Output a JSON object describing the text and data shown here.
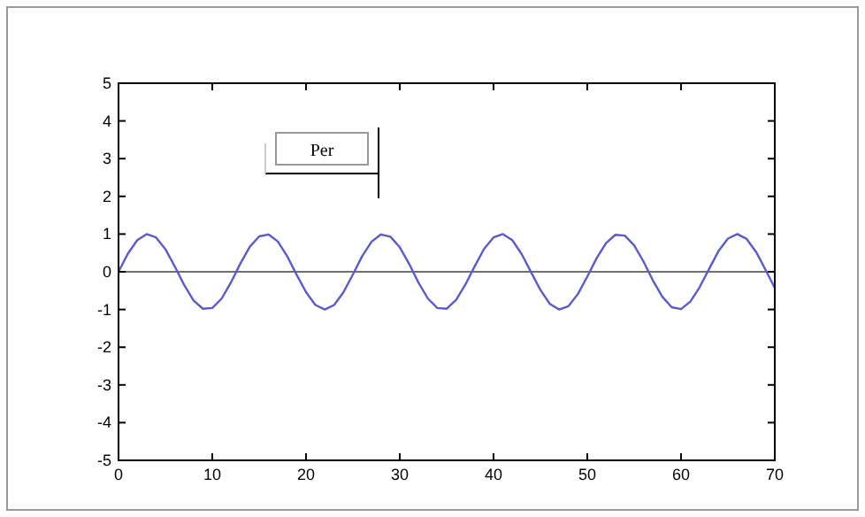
{
  "chart_data": {
    "type": "line",
    "x": [
      0,
      1,
      2,
      3,
      4,
      5,
      6,
      7,
      8,
      9,
      10,
      11,
      12,
      13,
      14,
      15,
      16,
      17,
      18,
      19,
      20,
      21,
      22,
      23,
      24,
      25,
      26,
      27,
      28,
      29,
      30,
      31,
      32,
      33,
      34,
      35,
      36,
      37,
      38,
      39,
      40,
      41,
      42,
      43,
      44,
      45,
      46,
      47,
      48,
      49,
      50,
      51,
      52,
      53,
      54,
      55,
      56,
      57,
      58,
      59,
      60,
      61,
      62,
      63,
      64,
      65,
      66,
      67,
      68,
      69,
      70
    ],
    "series": [
      {
        "color": "#5a5ad2",
        "values": [
          0,
          0.48,
          0.84,
          1,
          0.91,
          0.6,
          0.14,
          -0.35,
          -0.76,
          -0.98,
          -0.96,
          -0.71,
          -0.28,
          0.22,
          0.66,
          0.94,
          0.99,
          0.8,
          0.41,
          -0.08,
          -0.54,
          -0.88,
          -1,
          -0.88,
          -0.54,
          -0.07,
          0.42,
          0.8,
          0.99,
          0.93,
          0.65,
          0.21,
          -0.29,
          -0.71,
          -0.96,
          -0.98,
          -0.75,
          -0.34,
          0.15,
          0.61,
          0.91,
          1,
          0.84,
          0.47,
          -0.01,
          -0.48,
          -0.85,
          -1,
          -0.91,
          -0.59,
          -0.13,
          0.36,
          0.76,
          0.98,
          0.96,
          0.7,
          0.27,
          -0.23,
          -0.66,
          -0.94,
          -0.99,
          -0.79,
          -0.4,
          0.08,
          0.55,
          0.88,
          1,
          0.87,
          0.53,
          0.06,
          -0.43
        ]
      }
    ],
    "xlim": [
      0,
      70
    ],
    "xticks": [
      0,
      10,
      20,
      30,
      40,
      50,
      60,
      70
    ],
    "ylim": [
      -5,
      5
    ],
    "yticks": [
      -5,
      -4,
      -3,
      -2,
      -1,
      0,
      1,
      2,
      3,
      4,
      5
    ],
    "ref_lines": [
      {
        "axis": "y",
        "value": 0,
        "color": "#707070"
      }
    ],
    "annotations": [
      "Per"
    ],
    "grid": false,
    "line_style": "solid",
    "marker": "none"
  }
}
